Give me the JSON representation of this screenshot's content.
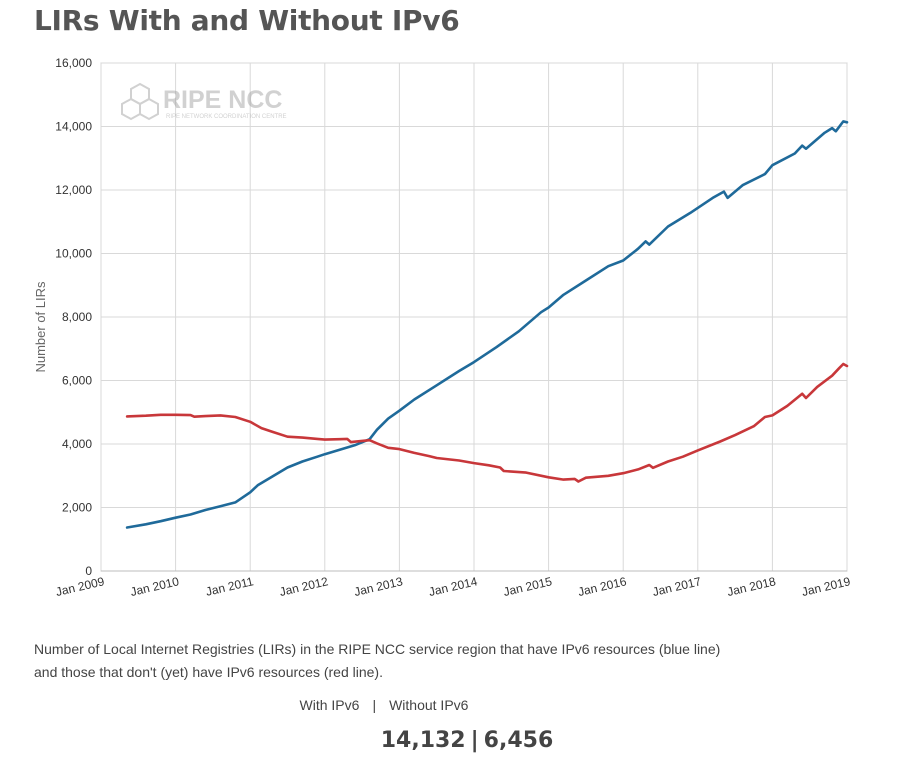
{
  "title": "LIRs With and Without IPv6",
  "logo": {
    "name": "RIPE NCC",
    "tagline": "RIPE NETWORK COORDINATION CENTRE"
  },
  "caption": "Number of Local Internet Registries (LIRs) in the RIPE NCC service region that have IPv6 resources (blue line) and those that don't (yet) have IPv6 resources (red line).",
  "summary": {
    "with_label": "With IPv6",
    "without_label": "Without IPv6",
    "separator": "|",
    "with_value": "14,132",
    "without_value": "6,456"
  },
  "colors": {
    "with": "#1f6a9a",
    "without": "#c8373a",
    "grid": "#d9d9d9"
  },
  "chart_data": {
    "type": "line",
    "title": "LIRs With and Without IPv6",
    "xlabel": "",
    "ylabel": "Number of LIRs",
    "xlim": [
      2009.0,
      2019.0
    ],
    "ylim": [
      0,
      16000
    ],
    "grid": true,
    "x_ticks": [
      {
        "value": 2009,
        "label": "Jan 2009"
      },
      {
        "value": 2010,
        "label": "Jan 2010"
      },
      {
        "value": 2011,
        "label": "Jan 2011"
      },
      {
        "value": 2012,
        "label": "Jan 2012"
      },
      {
        "value": 2013,
        "label": "Jan 2013"
      },
      {
        "value": 2014,
        "label": "Jan 2014"
      },
      {
        "value": 2015,
        "label": "Jan 2015"
      },
      {
        "value": 2016,
        "label": "Jan 2016"
      },
      {
        "value": 2017,
        "label": "Jan 2017"
      },
      {
        "value": 2018,
        "label": "Jan 2018"
      },
      {
        "value": 2019,
        "label": "Jan 2019"
      }
    ],
    "y_ticks": [
      {
        "value": 0,
        "label": "0"
      },
      {
        "value": 2000,
        "label": "2,000"
      },
      {
        "value": 4000,
        "label": "4,000"
      },
      {
        "value": 6000,
        "label": "6,000"
      },
      {
        "value": 8000,
        "label": "8,000"
      },
      {
        "value": 10000,
        "label": "10,000"
      },
      {
        "value": 12000,
        "label": "12,000"
      },
      {
        "value": 14000,
        "label": "14,000"
      },
      {
        "value": 16000,
        "label": "16,000"
      }
    ],
    "series": [
      {
        "key": "with",
        "points": [
          [
            2009.35,
            1370
          ],
          [
            2009.6,
            1470
          ],
          [
            2009.8,
            1570
          ],
          [
            2010.0,
            1680
          ],
          [
            2010.2,
            1780
          ],
          [
            2010.4,
            1920
          ],
          [
            2010.6,
            2040
          ],
          [
            2010.8,
            2160
          ],
          [
            2011.0,
            2480
          ],
          [
            2011.1,
            2700
          ],
          [
            2011.3,
            2980
          ],
          [
            2011.5,
            3260
          ],
          [
            2011.7,
            3450
          ],
          [
            2011.9,
            3600
          ],
          [
            2012.0,
            3680
          ],
          [
            2012.2,
            3820
          ],
          [
            2012.4,
            3960
          ],
          [
            2012.6,
            4150
          ],
          [
            2012.7,
            4450
          ],
          [
            2012.85,
            4800
          ],
          [
            2013.0,
            5050
          ],
          [
            2013.2,
            5400
          ],
          [
            2013.5,
            5850
          ],
          [
            2013.8,
            6300
          ],
          [
            2014.0,
            6580
          ],
          [
            2014.3,
            7050
          ],
          [
            2014.6,
            7550
          ],
          [
            2014.9,
            8150
          ],
          [
            2015.0,
            8300
          ],
          [
            2015.2,
            8700
          ],
          [
            2015.5,
            9150
          ],
          [
            2015.8,
            9600
          ],
          [
            2016.0,
            9780
          ],
          [
            2016.2,
            10150
          ],
          [
            2016.3,
            10380
          ],
          [
            2016.35,
            10280
          ],
          [
            2016.6,
            10850
          ],
          [
            2016.9,
            11280
          ],
          [
            2017.2,
            11750
          ],
          [
            2017.35,
            11950
          ],
          [
            2017.4,
            11750
          ],
          [
            2017.6,
            12150
          ],
          [
            2017.9,
            12500
          ],
          [
            2018.0,
            12780
          ],
          [
            2018.3,
            13150
          ],
          [
            2018.4,
            13400
          ],
          [
            2018.45,
            13300
          ],
          [
            2018.7,
            13800
          ],
          [
            2018.8,
            13950
          ],
          [
            2018.85,
            13850
          ],
          [
            2018.95,
            14160
          ],
          [
            2019.0,
            14132
          ]
        ]
      },
      {
        "key": "without",
        "points": [
          [
            2009.35,
            4870
          ],
          [
            2009.6,
            4890
          ],
          [
            2009.8,
            4920
          ],
          [
            2010.0,
            4920
          ],
          [
            2010.2,
            4910
          ],
          [
            2010.25,
            4860
          ],
          [
            2010.4,
            4880
          ],
          [
            2010.6,
            4900
          ],
          [
            2010.8,
            4850
          ],
          [
            2011.0,
            4700
          ],
          [
            2011.15,
            4500
          ],
          [
            2011.3,
            4380
          ],
          [
            2011.5,
            4230
          ],
          [
            2011.7,
            4200
          ],
          [
            2011.9,
            4160
          ],
          [
            2012.0,
            4140
          ],
          [
            2012.2,
            4150
          ],
          [
            2012.3,
            4160
          ],
          [
            2012.35,
            4060
          ],
          [
            2012.6,
            4120
          ],
          [
            2012.7,
            4020
          ],
          [
            2012.85,
            3880
          ],
          [
            2013.0,
            3840
          ],
          [
            2013.2,
            3720
          ],
          [
            2013.4,
            3620
          ],
          [
            2013.5,
            3560
          ],
          [
            2013.8,
            3480
          ],
          [
            2014.0,
            3400
          ],
          [
            2014.2,
            3330
          ],
          [
            2014.35,
            3260
          ],
          [
            2014.4,
            3150
          ],
          [
            2014.7,
            3100
          ],
          [
            2015.0,
            2950
          ],
          [
            2015.2,
            2880
          ],
          [
            2015.35,
            2900
          ],
          [
            2015.4,
            2820
          ],
          [
            2015.5,
            2940
          ],
          [
            2015.8,
            3000
          ],
          [
            2016.0,
            3080
          ],
          [
            2016.2,
            3200
          ],
          [
            2016.35,
            3340
          ],
          [
            2016.4,
            3250
          ],
          [
            2016.6,
            3450
          ],
          [
            2016.8,
            3600
          ],
          [
            2017.0,
            3800
          ],
          [
            2017.3,
            4080
          ],
          [
            2017.5,
            4280
          ],
          [
            2017.75,
            4560
          ],
          [
            2017.9,
            4850
          ],
          [
            2018.0,
            4900
          ],
          [
            2018.2,
            5200
          ],
          [
            2018.4,
            5580
          ],
          [
            2018.45,
            5450
          ],
          [
            2018.6,
            5800
          ],
          [
            2018.8,
            6150
          ],
          [
            2018.9,
            6400
          ],
          [
            2018.95,
            6520
          ],
          [
            2019.0,
            6456
          ]
        ]
      }
    ]
  }
}
